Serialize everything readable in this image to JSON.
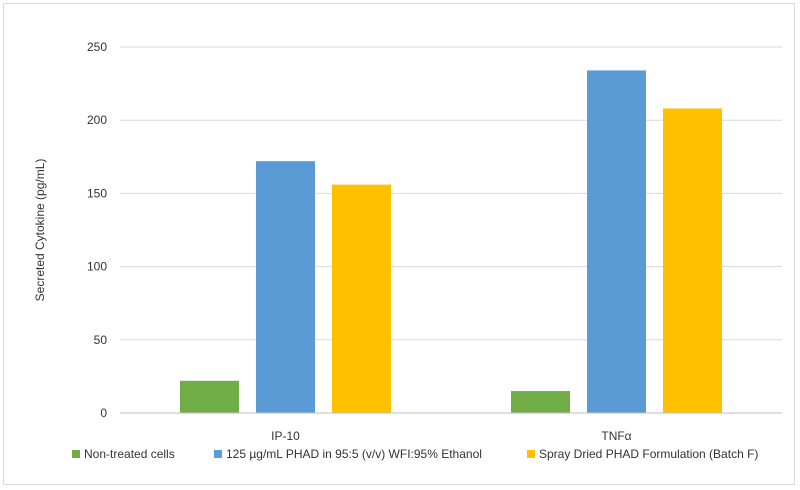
{
  "chart_data": {
    "type": "bar",
    "title": "",
    "xlabel": "",
    "ylabel": "Secreted Cytokine (pg/mL)",
    "ylim": [
      0,
      250
    ],
    "yticks": [
      0,
      50,
      100,
      150,
      200,
      250
    ],
    "grid": true,
    "legend_position": "bottom",
    "categories": [
      "IP-10",
      "TNFα"
    ],
    "series": [
      {
        "name": "Non-treated cells",
        "color": "#70ad47",
        "values": [
          22,
          15
        ]
      },
      {
        "name": "125 µg/mL PHAD in 95:5 (v/v) WFI:95% Ethanol",
        "color": "#5b9bd5",
        "values": [
          172,
          234
        ]
      },
      {
        "name": "Spray Dried PHAD Formulation (Batch F)",
        "color": "#ffc000",
        "values": [
          156,
          208
        ]
      }
    ]
  }
}
